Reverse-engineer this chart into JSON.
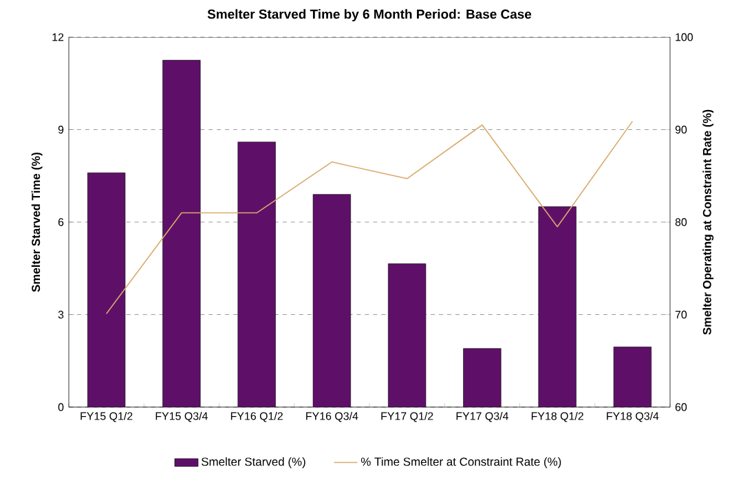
{
  "chart_data": {
    "type": "bar",
    "title": "Smelter Starved Time by 6 Month Period: Base Case",
    "ylabel": "Smelter Starved Time (%)",
    "y2label": "Smelter Operating at Constraint Rate (%)",
    "categories": [
      "FY15 Q1/2",
      "FY15 Q3/4",
      "FY16 Q1/2",
      "FY16 Q3/4",
      "FY17 Q1/2",
      "FY17 Q3/4",
      "FY18 Q1/2",
      "FY18 Q3/4"
    ],
    "series": [
      {
        "name": "Smelter Starved (%)",
        "color": "#5e1068",
        "values": [
          7.6,
          11.25,
          8.6,
          6.9,
          4.65,
          1.9,
          6.5,
          1.95
        ]
      },
      {
        "name": "% Time Smelter at Constraint Rate (%)",
        "type": "line",
        "axis": "y2",
        "color": "#d9aa6c",
        "values": [
          70.1,
          81.0,
          81.0,
          86.5,
          84.7,
          90.5,
          79.5,
          90.9
        ]
      }
    ],
    "ylim": [
      0,
      12
    ],
    "yticks": [
      0,
      3,
      6,
      9,
      12
    ],
    "y2lim": [
      60,
      100
    ],
    "y2ticks": [
      60,
      70,
      80,
      90,
      100
    ],
    "grid": "y",
    "legend": "bottom"
  }
}
